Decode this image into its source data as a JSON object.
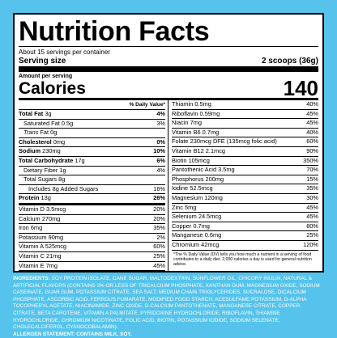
{
  "title": "Nutrition Facts",
  "servings_per_container": "About 15 servings per container",
  "serving_size_label": "Serving size",
  "serving_size_value": "2 scoops (36g)",
  "amount_per_serving": "Amount per serving",
  "calories_label": "Calories",
  "calories_value": "140",
  "dv_header": "% Daily Value*",
  "left_macros": [
    {
      "name": "Total Fat",
      "amount": "3g",
      "dv": "4%",
      "bold": true
    },
    {
      "name": "Saturated Fat",
      "amount": "0.5g",
      "dv": "3%",
      "indent": 1
    },
    {
      "name": "Trans",
      "name_suffix": "Fat",
      "amount": "0g",
      "dv": "",
      "indent": 1,
      "italic": true
    },
    {
      "name": "Cholesterol",
      "amount": "0mg",
      "dv": "0%",
      "bold": true
    },
    {
      "name": "Sodium",
      "amount": "230mg",
      "dv": "10%",
      "bold": true
    },
    {
      "name": "Total Carbohydrate",
      "amount": "17g",
      "dv": "6%",
      "bold": true
    },
    {
      "name": "Dietary Fiber",
      "amount": "1g",
      "dv": "4%",
      "indent": 1
    },
    {
      "name": "Total Sugars",
      "amount": "8g",
      "dv": "",
      "indent": 1
    },
    {
      "name": "Includes 8g Added Sugars",
      "amount": "",
      "dv": "16%",
      "indent": 2
    },
    {
      "name": "Protein",
      "amount": "13g",
      "dv": "26%",
      "bold": true
    }
  ],
  "left_micros": [
    {
      "name": "Vitamin D",
      "amount": "3.5mcg",
      "dv": "20%"
    },
    {
      "name": "Calcium",
      "amount": "270mg",
      "dv": "20%"
    },
    {
      "name": "Iron",
      "amount": "6mg",
      "dv": "35%"
    },
    {
      "name": "Potassium",
      "amount": "90mg",
      "dv": "2%"
    },
    {
      "name": "Vitamin A",
      "amount": "525mcg",
      "dv": "60%"
    },
    {
      "name": "Vitamin C",
      "amount": "21mg",
      "dv": "25%"
    },
    {
      "name": "Vitamin E",
      "amount": "7mg",
      "dv": "45%"
    }
  ],
  "right_rows": [
    {
      "name": "Thiamin",
      "amount": "0.5mg",
      "dv": "40%"
    },
    {
      "name": "Riboflavin",
      "amount": "0.59mg",
      "dv": "45%"
    },
    {
      "name": "Niacin",
      "amount": "7mg",
      "dv": "45%"
    },
    {
      "name": "Vitamin B6",
      "amount": "0.7mg",
      "dv": "40%"
    },
    {
      "name": "Folate",
      "amount": "230mcg DFE (135mcg folic acid)",
      "dv": "60%"
    },
    {
      "name": "Vitamin B12",
      "amount": "2.1mcg",
      "dv": "90%"
    },
    {
      "name": "Biotin",
      "amount": "105mcg",
      "dv": "350%"
    },
    {
      "name": "Pantothenic Acid",
      "amount": "3.5mg",
      "dv": "70%"
    },
    {
      "name": "Phosphorus",
      "amount": "200mg",
      "dv": "15%"
    },
    {
      "name": "Iodine",
      "amount": "52.5mcg",
      "dv": "35%"
    },
    {
      "name": "Magnesium",
      "amount": "120mg",
      "dv": "30%"
    },
    {
      "name": "Zinc",
      "amount": "5mg",
      "dv": "45%"
    },
    {
      "name": "Selenium",
      "amount": "24.5mcg",
      "dv": "45%"
    },
    {
      "name": "Copper",
      "amount": "0.7mg",
      "dv": "80%"
    },
    {
      "name": "Manganese",
      "amount": "0.6mg",
      "dv": "25%"
    },
    {
      "name": "Chromium",
      "amount": "42mcg",
      "dv": "120%"
    }
  ],
  "footnote": "*The % Daily Value (DV) tells you how much a nutrient in a serving of food contributes to a daily diet. 2,000 calories a day is used for general nutrition advice.",
  "ingredients_label": "INGREDIENTS:",
  "ingredients_text": "SOY PROTEIN ISOLATE, CANE SUGAR, MALTODEXTRIN, SUNFLOWER OIL, CHICORY INULIN, NATURAL & ARTIFICIAL FLAVORS (CONTAINS 2% OR LESS OF TRICALCIUM PHOSPHATE, XANTHAN GUM, MAGNESIUM OXIDE, SODIUM CASEINATE, GUAR GUM, POTASSIUM CITRATE, SEA SALT, MEDIUM CHAIN TRIGLYCERIDES, SUCRALOSE, DICALCIUM PHOSPHATE, ASCORBIC ACID, FERROUS FUMARATE, MODIFIED FOOD STARCH, ACESULFAME POTASSIUM, D-ALPHA TOCOPHERYL ACETATE, NIACINAMIDE, ZINC OXIDE, D-CALCIUM PANTOTHENATE, MANGANESE CITRATE, COPPER CITRATE, BETA CAROTENE, VITAMIN A PALMITATE, PYRIDOXINE HYDROCHLORIDE, RIBOFLAVIN, THIAMINE HYDROCHLORIDE, CHROMIUM NICOTINATE, FOLIC ACID, BIOTIN, POTASSIUM IODIDE, SODIUM SELENATE, CHOLECALCIFEROL, CYANOCOBALAMIN).",
  "allergen_statement": "ALLERGEN STATEMENT: CONTAINS MILK, SOY.",
  "colors": {
    "background": "#55c3ec",
    "label": "#ffffff",
    "ink": "#000000"
  }
}
